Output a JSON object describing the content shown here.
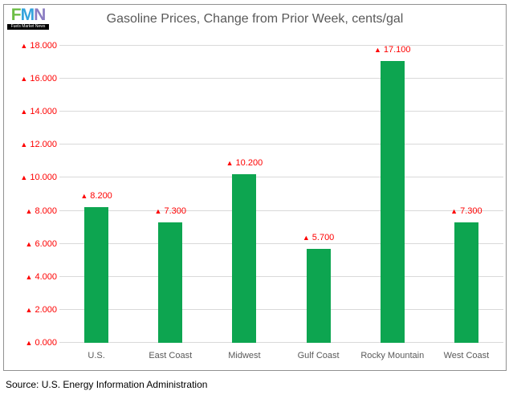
{
  "logo": {
    "letters": [
      {
        "ch": "F",
        "color": "#6cbe45"
      },
      {
        "ch": "M",
        "color": "#33a3dc"
      },
      {
        "ch": "N",
        "color": "#8a7cc2"
      }
    ],
    "caption": "Fuels Market News"
  },
  "chart_data": {
    "type": "bar",
    "title": "Gasoline Prices, Change from Prior Week, cents/gal",
    "categories": [
      "U.S.",
      "East Coast",
      "Midwest",
      "Gulf Coast",
      "Rocky Mountain",
      "West Coast"
    ],
    "values": [
      8.2,
      7.3,
      10.2,
      5.7,
      17.1,
      7.3
    ],
    "value_labels": [
      "8.200",
      "7.300",
      "10.200",
      "5.700",
      "17.100",
      "7.300"
    ],
    "marker": "▲",
    "y_ticks": [
      {
        "v": 0,
        "label": "0.000"
      },
      {
        "v": 2,
        "label": "2.000"
      },
      {
        "v": 4,
        "label": "4.000"
      },
      {
        "v": 6,
        "label": "6.000"
      },
      {
        "v": 8,
        "label": "8.000"
      },
      {
        "v": 10,
        "label": "10.000"
      },
      {
        "v": 12,
        "label": "12.000"
      },
      {
        "v": 14,
        "label": "14.000"
      },
      {
        "v": 16,
        "label": "16.000"
      },
      {
        "v": 18,
        "label": "18.000"
      }
    ],
    "ylim": [
      0,
      18
    ],
    "grid": true,
    "legend": "none",
    "bar_color": "#0da550",
    "label_color": "#fe0000",
    "tick_color": "#595959",
    "grid_color": "#d9d9d9"
  },
  "source": {
    "text": "Source: U.S. Energy Information Administration"
  }
}
